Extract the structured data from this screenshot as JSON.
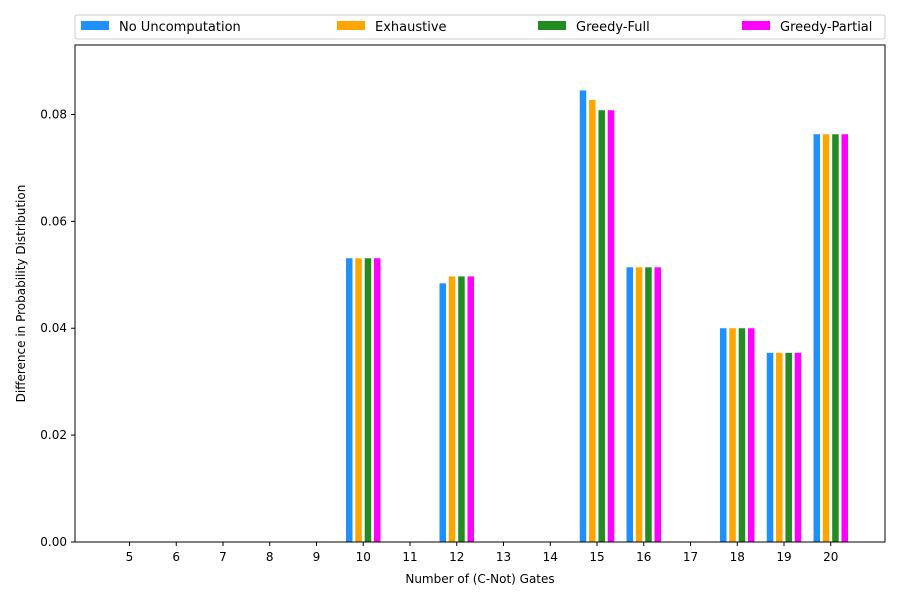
{
  "chart_data": {
    "type": "bar",
    "xlabel": "Number of (C-Not) Gates",
    "ylabel": "Difference in Probability Distribution",
    "categories": [
      "5",
      "6",
      "7",
      "8",
      "9",
      "10",
      "11",
      "12",
      "13",
      "14",
      "15",
      "16",
      "17",
      "18",
      "19",
      "20"
    ],
    "yticks": [
      "0.00",
      "0.02",
      "0.04",
      "0.06",
      "0.08"
    ],
    "ylim": [
      0,
      0.093
    ],
    "legend_position": "top",
    "grid": false,
    "series": [
      {
        "name": "No Uncomputation",
        "color": "#1e90ff",
        "values": [
          0,
          0,
          0,
          0,
          0,
          0.0531,
          0,
          0.0484,
          0,
          0,
          0.0845,
          0.0514,
          0,
          0.04,
          0.0354,
          0.0763
        ]
      },
      {
        "name": "Exhaustive",
        "color": "#ffa500",
        "values": [
          0,
          0,
          0,
          0,
          0,
          0.0531,
          0,
          0.0497,
          0,
          0,
          0.0827,
          0.0514,
          0,
          0.04,
          0.0354,
          0.0763
        ]
      },
      {
        "name": "Greedy-Full",
        "color": "#228b22",
        "values": [
          0,
          0,
          0,
          0,
          0,
          0.0531,
          0,
          0.0497,
          0,
          0,
          0.0808,
          0.0514,
          0,
          0.04,
          0.0354,
          0.0763
        ]
      },
      {
        "name": "Greedy-Partial",
        "color": "#ff00ff",
        "values": [
          0,
          0,
          0,
          0,
          0,
          0.0531,
          0,
          0.0497,
          0,
          0,
          0.0808,
          0.0514,
          0,
          0.04,
          0.0354,
          0.0763
        ]
      }
    ]
  }
}
